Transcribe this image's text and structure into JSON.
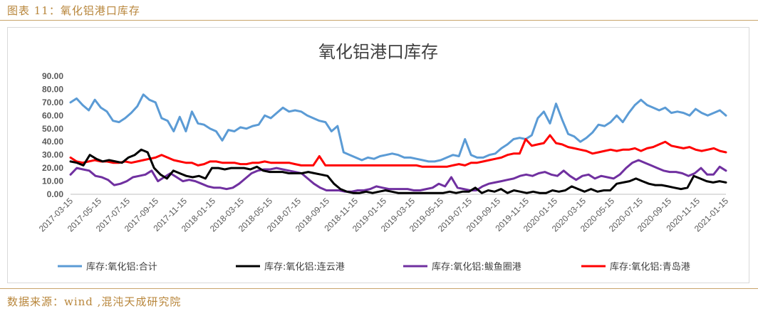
{
  "caption": "图表 11：氧化铝港口库存",
  "source": "数据来源：wind ,混沌天成研究院",
  "chart_data": {
    "type": "line",
    "title": "氧化铝港口库存",
    "ylim": [
      0,
      90
    ],
    "yticks": [
      "0.00",
      "10.00",
      "20.00",
      "30.00",
      "40.00",
      "50.00",
      "60.00",
      "70.00",
      "80.00",
      "90.00"
    ],
    "xticks": [
      "2017-03-15",
      "2017-05-15",
      "2017-07-15",
      "2017-09-15",
      "2017-11-15",
      "2018-01-15",
      "2018-03-15",
      "2018-05-15",
      "2018-07-15",
      "2018-09-15",
      "2018-11-15",
      "2019-01-15",
      "2019-03-15",
      "2019-05-15",
      "2019-07-15",
      "2019-09-15",
      "2019-11-15",
      "2020-01-15",
      "2020-03-15",
      "2020-05-15",
      "2020-07-15",
      "2020-09-15",
      "2020-11-15",
      "2021-01-15"
    ],
    "grid": false,
    "legend_position": "bottom",
    "series": [
      {
        "name": "库存:氧化铝:合计",
        "color": "#5b9bd5",
        "values": [
          70,
          73,
          68,
          64,
          72,
          66,
          63,
          56,
          55,
          58,
          62,
          67,
          76,
          72,
          70,
          58,
          56,
          48,
          59,
          48,
          63,
          54,
          53,
          50,
          48,
          41,
          49,
          48,
          51,
          50,
          52,
          53,
          60,
          58,
          62,
          66,
          63,
          64,
          63,
          60,
          58,
          56,
          55,
          48,
          52,
          32,
          30,
          28,
          26,
          28,
          27,
          29,
          30,
          31,
          30,
          28,
          28,
          27,
          26,
          25,
          25,
          26,
          28,
          30,
          29,
          42,
          30,
          28,
          28,
          30,
          31,
          35,
          38,
          42,
          43,
          42,
          45,
          58,
          63,
          54,
          69,
          57,
          46,
          44,
          40,
          43,
          47,
          53,
          52,
          55,
          60,
          55,
          62,
          68,
          72,
          68,
          66,
          64,
          66,
          62,
          63,
          62,
          60,
          65,
          62,
          60,
          62,
          64,
          60
        ]
      },
      {
        "name": "库存:氧化铝:连云港",
        "color": "#000000",
        "values": [
          25,
          24,
          22,
          30,
          27,
          25,
          26,
          25,
          24,
          28,
          30,
          34,
          32,
          20,
          15,
          12,
          18,
          16,
          14,
          13,
          14,
          12,
          20,
          20,
          19,
          20,
          20,
          20,
          19,
          21,
          18,
          17,
          17,
          17,
          16,
          16,
          16,
          17,
          16,
          15,
          14,
          8,
          4,
          2,
          1,
          1,
          2,
          1,
          2,
          3,
          2,
          1,
          1,
          1,
          1,
          1,
          1,
          1,
          1,
          2,
          1,
          2,
          2,
          5,
          1,
          3,
          2,
          4,
          1,
          3,
          2,
          1,
          2,
          1,
          1,
          3,
          2,
          3,
          6,
          4,
          2,
          4,
          2,
          3,
          3,
          8,
          9,
          10,
          12,
          10,
          8,
          7,
          7,
          6,
          5,
          4,
          5,
          14,
          12,
          10,
          9,
          10,
          9
        ]
      },
      {
        "name": "库存:氧化铝:鲅鱼圈港",
        "color": "#7030a0",
        "values": [
          15,
          20,
          19,
          18,
          14,
          13,
          11,
          7,
          8,
          10,
          13,
          14,
          15,
          18,
          10,
          13,
          16,
          13,
          10,
          11,
          10,
          8,
          6,
          5,
          5,
          4,
          5,
          8,
          12,
          16,
          18,
          19,
          19,
          20,
          19,
          18,
          17,
          16,
          12,
          8,
          5,
          3,
          3,
          3,
          2,
          2,
          3,
          3,
          4,
          6,
          5,
          4,
          4,
          4,
          4,
          3,
          3,
          4,
          5,
          8,
          6,
          13,
          5,
          4,
          3,
          3,
          6,
          8,
          9,
          10,
          11,
          12,
          14,
          15,
          14,
          16,
          17,
          15,
          14,
          18,
          14,
          11,
          14,
          15,
          12,
          14,
          13,
          12,
          15,
          20,
          24,
          26,
          24,
          22,
          20,
          18,
          17,
          17,
          16,
          14,
          16,
          20,
          15,
          15,
          21,
          18
        ]
      },
      {
        "name": "库存:氧化铝:青岛港",
        "color": "#ff0000",
        "values": [
          28,
          25,
          24,
          25,
          26,
          25,
          25,
          24,
          24,
          25,
          24,
          25,
          26,
          27,
          28,
          30,
          28,
          26,
          25,
          24,
          24,
          22,
          23,
          25,
          25,
          24,
          24,
          24,
          23,
          23,
          24,
          24,
          25,
          24,
          24,
          24,
          24,
          23,
          22,
          22,
          22,
          29,
          22,
          22,
          22,
          22,
          22,
          22,
          22,
          22,
          22,
          22,
          22,
          22,
          22,
          22,
          22,
          22,
          21,
          21,
          21,
          21,
          21,
          22,
          23,
          22,
          24,
          24,
          25,
          26,
          27,
          28,
          30,
          31,
          31,
          42,
          37,
          38,
          39,
          45,
          39,
          38,
          36,
          35,
          34,
          33,
          31,
          32,
          33,
          34,
          33,
          34,
          34,
          35,
          33,
          35,
          36,
          38,
          40,
          37,
          36,
          35,
          36,
          34,
          33,
          34,
          35,
          33,
          32
        ]
      }
    ]
  }
}
